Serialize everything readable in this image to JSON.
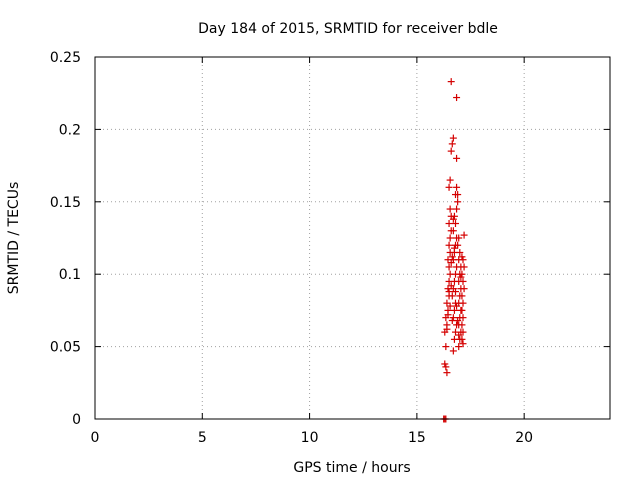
{
  "chart_data": {
    "type": "scatter",
    "title": "Day 184 of 2015, SRMTID for receiver bdle",
    "xlabel": "GPS time / hours",
    "ylabel": "SRMTID / TECUs",
    "xlim": [
      0,
      24
    ],
    "ylim": [
      0,
      0.25
    ],
    "xticks": [
      0,
      5,
      10,
      15,
      20
    ],
    "xtick_labels": [
      "0",
      "5",
      "10",
      "15",
      "20"
    ],
    "yticks": [
      0,
      0.05,
      0.1,
      0.15,
      0.2,
      0.25
    ],
    "ytick_labels": [
      "0",
      "0.05",
      "0.1",
      "0.15",
      "0.2",
      "0.25"
    ],
    "grid": true,
    "marker": "+",
    "color": "#d40000",
    "series": [
      {
        "name": "SRMTID",
        "points": [
          [
            16.25,
            0.0
          ],
          [
            16.3,
            0.0
          ],
          [
            16.35,
            0.0
          ],
          [
            16.3,
            0.038
          ],
          [
            16.35,
            0.036
          ],
          [
            16.4,
            0.032
          ],
          [
            16.35,
            0.05
          ],
          [
            16.3,
            0.06
          ],
          [
            16.4,
            0.065
          ],
          [
            16.35,
            0.07
          ],
          [
            16.45,
            0.075
          ],
          [
            16.4,
            0.08
          ],
          [
            16.5,
            0.085
          ],
          [
            16.45,
            0.09
          ],
          [
            16.5,
            0.095
          ],
          [
            16.55,
            0.1
          ],
          [
            16.5,
            0.105
          ],
          [
            16.45,
            0.11
          ],
          [
            16.55,
            0.115
          ],
          [
            16.5,
            0.12
          ],
          [
            16.55,
            0.125
          ],
          [
            16.6,
            0.13
          ],
          [
            16.5,
            0.135
          ],
          [
            16.6,
            0.14
          ],
          [
            16.55,
            0.145
          ],
          [
            16.5,
            0.16
          ],
          [
            16.55,
            0.165
          ],
          [
            16.6,
            0.185
          ],
          [
            16.65,
            0.19
          ],
          [
            16.7,
            0.194
          ],
          [
            16.85,
            0.18
          ],
          [
            16.6,
            0.233
          ],
          [
            16.85,
            0.222
          ],
          [
            16.7,
            0.047
          ],
          [
            16.75,
            0.055
          ],
          [
            16.8,
            0.06
          ],
          [
            16.85,
            0.065
          ],
          [
            16.7,
            0.07
          ],
          [
            16.75,
            0.075
          ],
          [
            16.8,
            0.08
          ],
          [
            16.65,
            0.085
          ],
          [
            16.7,
            0.09
          ],
          [
            16.75,
            0.095
          ],
          [
            16.8,
            0.1
          ],
          [
            16.85,
            0.105
          ],
          [
            16.7,
            0.11
          ],
          [
            16.75,
            0.115
          ],
          [
            16.8,
            0.12
          ],
          [
            16.85,
            0.125
          ],
          [
            16.7,
            0.13
          ],
          [
            16.8,
            0.135
          ],
          [
            16.75,
            0.14
          ],
          [
            16.85,
            0.145
          ],
          [
            16.9,
            0.15
          ],
          [
            16.8,
            0.155
          ],
          [
            16.9,
            0.155
          ],
          [
            16.85,
            0.16
          ],
          [
            16.95,
            0.05
          ],
          [
            17.0,
            0.055
          ],
          [
            17.05,
            0.06
          ],
          [
            16.95,
            0.065
          ],
          [
            17.0,
            0.07
          ],
          [
            17.05,
            0.075
          ],
          [
            16.95,
            0.08
          ],
          [
            17.0,
            0.085
          ],
          [
            17.05,
            0.09
          ],
          [
            16.95,
            0.095
          ],
          [
            17.0,
            0.1
          ],
          [
            17.05,
            0.105
          ],
          [
            16.95,
            0.11
          ],
          [
            17.0,
            0.115
          ],
          [
            16.9,
            0.12
          ],
          [
            16.95,
            0.125
          ],
          [
            17.1,
            0.055
          ],
          [
            17.15,
            0.06
          ],
          [
            17.1,
            0.065
          ],
          [
            17.15,
            0.07
          ],
          [
            17.1,
            0.075
          ],
          [
            17.15,
            0.08
          ],
          [
            17.1,
            0.085
          ],
          [
            17.2,
            0.09
          ],
          [
            17.15,
            0.095
          ],
          [
            17.1,
            0.1
          ],
          [
            17.2,
            0.105
          ],
          [
            17.15,
            0.11
          ],
          [
            17.2,
            0.127
          ],
          [
            17.15,
            0.052
          ],
          [
            16.4,
            0.062
          ],
          [
            16.45,
            0.072
          ],
          [
            16.5,
            0.088
          ],
          [
            16.6,
            0.092
          ],
          [
            16.65,
            0.068
          ],
          [
            16.55,
            0.078
          ],
          [
            16.6,
            0.108
          ],
          [
            16.65,
            0.112
          ],
          [
            16.7,
            0.138
          ],
          [
            16.75,
            0.118
          ],
          [
            16.8,
            0.088
          ],
          [
            16.85,
            0.078
          ],
          [
            16.9,
            0.068
          ],
          [
            16.95,
            0.058
          ],
          [
            17.05,
            0.098
          ],
          [
            17.1,
            0.112
          ]
        ]
      }
    ]
  }
}
